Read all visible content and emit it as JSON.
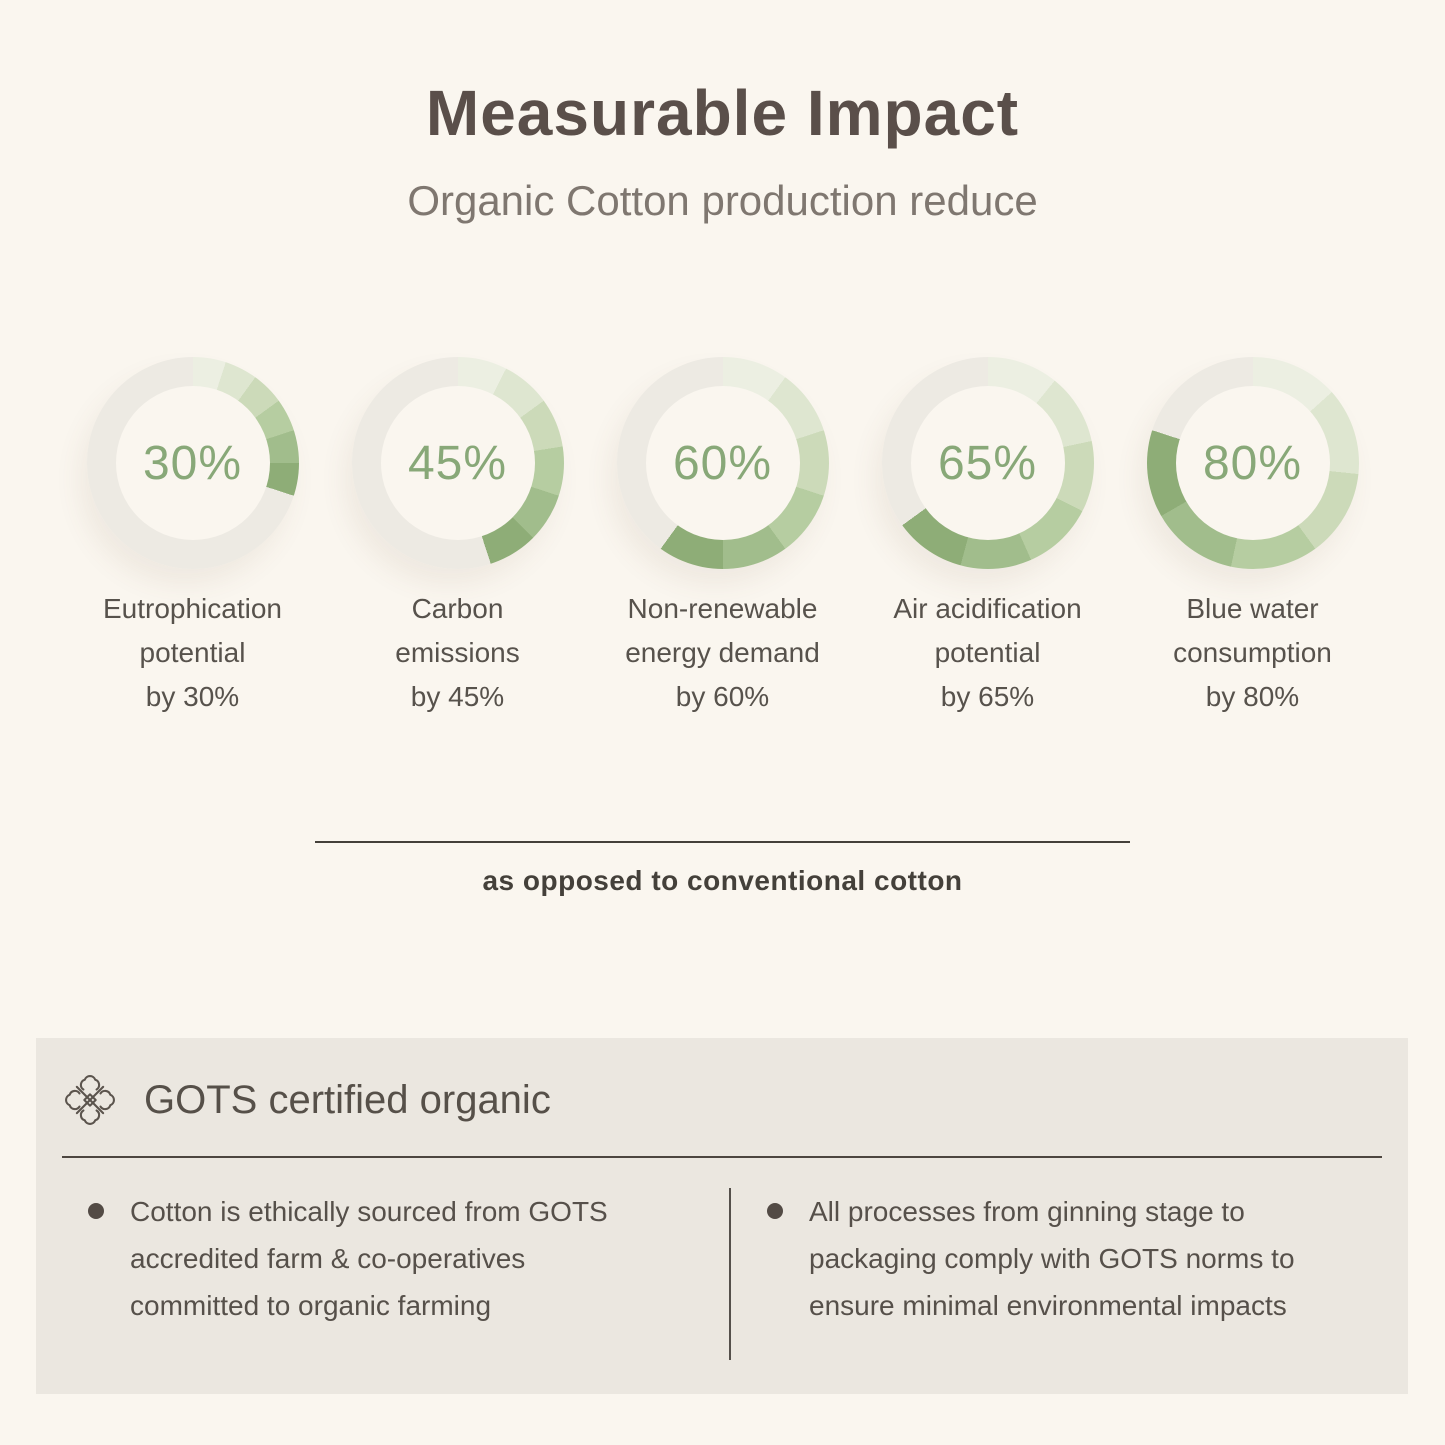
{
  "header": {
    "title": "Measurable Impact",
    "subtitle": "Organic Cotton production reduce"
  },
  "chart_data": {
    "type": "pie",
    "variant": "donut-progress-set",
    "legend_position": "below-each-donut",
    "ring_track_color": "#edeae3",
    "ring_gradient_steps": [
      "#ecefe2",
      "#dee6d0",
      "#ccdab9",
      "#b6cda1",
      "#a1bd8c",
      "#8ead77"
    ],
    "center_text_color": "#88a878",
    "donuts": [
      {
        "value": 30,
        "center_label": "30%",
        "caption_lines": [
          "Eutrophication",
          "potential",
          "by 30%"
        ]
      },
      {
        "value": 45,
        "center_label": "45%",
        "caption_lines": [
          "Carbon",
          "emissions",
          "by 45%"
        ]
      },
      {
        "value": 60,
        "center_label": "60%",
        "caption_lines": [
          "Non-renewable",
          "energy demand",
          "by 60%"
        ]
      },
      {
        "value": 65,
        "center_label": "65%",
        "caption_lines": [
          "Air acidification",
          "potential",
          "by 65%"
        ]
      },
      {
        "value": 80,
        "center_label": "80%",
        "caption_lines": [
          "Blue water",
          "consumption",
          "by 80%"
        ]
      }
    ]
  },
  "footnote": {
    "text": "as opposed to conventional cotton"
  },
  "gots_panel": {
    "heading": "GOTS certified organic",
    "icon": "ornamental-knot-icon",
    "bullets": [
      {
        "lines": [
          "Cotton is ethically sourced from GOTS",
          "accredited farm & co-operatives",
          "committed to organic farming"
        ]
      },
      {
        "lines": [
          "All processes from ginning stage to",
          "packaging comply with GOTS norms to",
          "ensure minimal environmental impacts"
        ]
      }
    ]
  },
  "colors": {
    "background": "#faf6ef",
    "panel_background": "#ebe7e0",
    "title_text": "#5a4f4a",
    "subtitle_text": "#7f7770",
    "body_text": "#57524c",
    "accent_green": "#88a878",
    "divider": "#44403a"
  }
}
